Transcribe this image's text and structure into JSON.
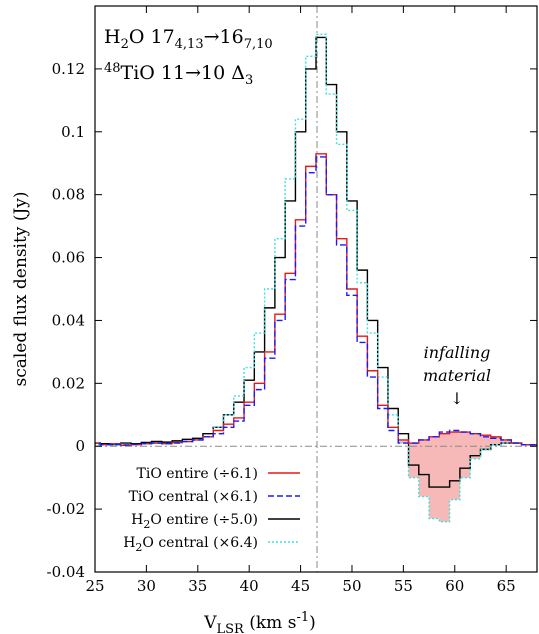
{
  "chart_data": {
    "type": "line",
    "title_line1": {
      "main": "H",
      "sub1": "2",
      "mid": "O 17",
      "sub2": "4,13",
      "arrow": "→16",
      "sub3": "7,10"
    },
    "title_line2": {
      "sup": "48",
      "main": "TiO 11→10 Δ",
      "sub": "3"
    },
    "xlabel": {
      "main": "V",
      "sub": "LSR",
      "unit": " (km s",
      "sup": "-1",
      "close": ")"
    },
    "ylabel": "scaled flux density (Jy)",
    "xlim": [
      25,
      68
    ],
    "ylim": [
      -0.04,
      0.14
    ],
    "x_ticks": [
      25,
      30,
      35,
      40,
      45,
      50,
      55,
      60,
      65
    ],
    "y_ticks": [
      -0.04,
      -0.02,
      0,
      0.02,
      0.04,
      0.06,
      0.08,
      0.1,
      0.12
    ],
    "y_tick_labels": [
      "-0.04",
      "-0.02",
      "0",
      "0.02",
      "0.04",
      "0.06",
      "0.08",
      "0.1",
      "0.12"
    ],
    "vline_x": 46.6,
    "annotation": {
      "line1": "infalling",
      "line2": "material",
      "arrow": "↓",
      "x": 60
    },
    "x": [
      25,
      26,
      27,
      28,
      29,
      30,
      31,
      32,
      33,
      34,
      35,
      36,
      37,
      38,
      39,
      40,
      41,
      42,
      43,
      44,
      45,
      46,
      47,
      48,
      49,
      50,
      51,
      52,
      53,
      54,
      55,
      56,
      57,
      58,
      59,
      60,
      61,
      62,
      63,
      64,
      65,
      66,
      67,
      68
    ],
    "series": [
      {
        "name": "TiO entire (÷6.1)",
        "color": "#e31a1c",
        "style": "solid",
        "values": [
          0.001,
          0.0005,
          0.0008,
          0.0003,
          0.0005,
          0.0008,
          0.001,
          0.0008,
          0.0012,
          0.0015,
          0.002,
          0.003,
          0.005,
          0.007,
          0.009,
          0.014,
          0.02,
          0.03,
          0.042,
          0.055,
          0.072,
          0.089,
          0.093,
          0.08,
          0.066,
          0.05,
          0.035,
          0.024,
          0.013,
          0.006,
          0.002,
          0.001,
          0.002,
          0.003,
          0.004,
          0.0045,
          0.0045,
          0.004,
          0.0035,
          0.003,
          0.002,
          0.001,
          0.0005,
          0.0005
        ]
      },
      {
        "name": "TiO  central (×6.1)",
        "color": "#1a1aff",
        "style": "dash",
        "values": [
          0.001,
          0.0005,
          0.0006,
          0.0004,
          0.0006,
          0.0008,
          0.001,
          0.0008,
          0.001,
          0.0015,
          0.002,
          0.003,
          0.004,
          0.006,
          0.008,
          0.013,
          0.018,
          0.028,
          0.04,
          0.053,
          0.07,
          0.087,
          0.092,
          0.08,
          0.064,
          0.048,
          0.033,
          0.022,
          0.012,
          0.005,
          0.001,
          0.001,
          0.002,
          0.003,
          0.0045,
          0.005,
          0.0045,
          0.004,
          0.003,
          0.0025,
          0.002,
          0.001,
          0.0005,
          0.0005
        ]
      },
      {
        "name": "H2O entire (÷5.0)",
        "color": "#000000",
        "style": "solid",
        "values": [
          0.001,
          0.0008,
          0.0005,
          0.001,
          0.0008,
          0.0012,
          0.0015,
          0.0013,
          0.0017,
          0.0022,
          0.0025,
          0.004,
          0.006,
          0.01,
          0.014,
          0.021,
          0.03,
          0.044,
          0.06,
          0.078,
          0.1,
          0.12,
          0.13,
          0.115,
          0.1,
          0.078,
          0.056,
          0.04,
          0.025,
          0.012,
          0.004,
          -0.006,
          -0.009,
          -0.013,
          -0.013,
          -0.011,
          -0.007,
          -0.003,
          -0.001,
          0.0005,
          0.001,
          0.001,
          0.0005,
          0.0005
        ]
      },
      {
        "name": "H2O central (×6.4)",
        "color": "#40e0e0",
        "style": "dot",
        "values": [
          0.0005,
          0.0005,
          0.0003,
          0.0006,
          0.0005,
          0.0008,
          0.001,
          0.0008,
          0.001,
          0.0015,
          0.002,
          0.003,
          0.006,
          0.01,
          0.016,
          0.025,
          0.036,
          0.05,
          0.066,
          0.085,
          0.104,
          0.124,
          0.131,
          0.112,
          0.096,
          0.075,
          0.052,
          0.036,
          0.022,
          0.01,
          0.001,
          -0.01,
          -0.016,
          -0.023,
          -0.024,
          -0.017,
          -0.01,
          -0.004,
          -0.001,
          0.0005,
          0.001,
          0.001,
          0.0005,
          0.0005
        ]
      }
    ],
    "legend": [
      {
        "label_pre": "TiO entire (÷6.1)",
        "sub": "",
        "label_post": ""
      },
      {
        "label_pre": "TiO  central (×6.1)",
        "sub": "",
        "label_post": ""
      },
      {
        "label_pre": "H",
        "sub": "2",
        "label_post": "O entire (÷5.0)"
      },
      {
        "label_pre": "H",
        "sub": "2",
        "label_post": "O central (×6.4)"
      }
    ],
    "fill_color": "#f7b8b8",
    "grid": false,
    "legend_placement": "bottom-left"
  }
}
